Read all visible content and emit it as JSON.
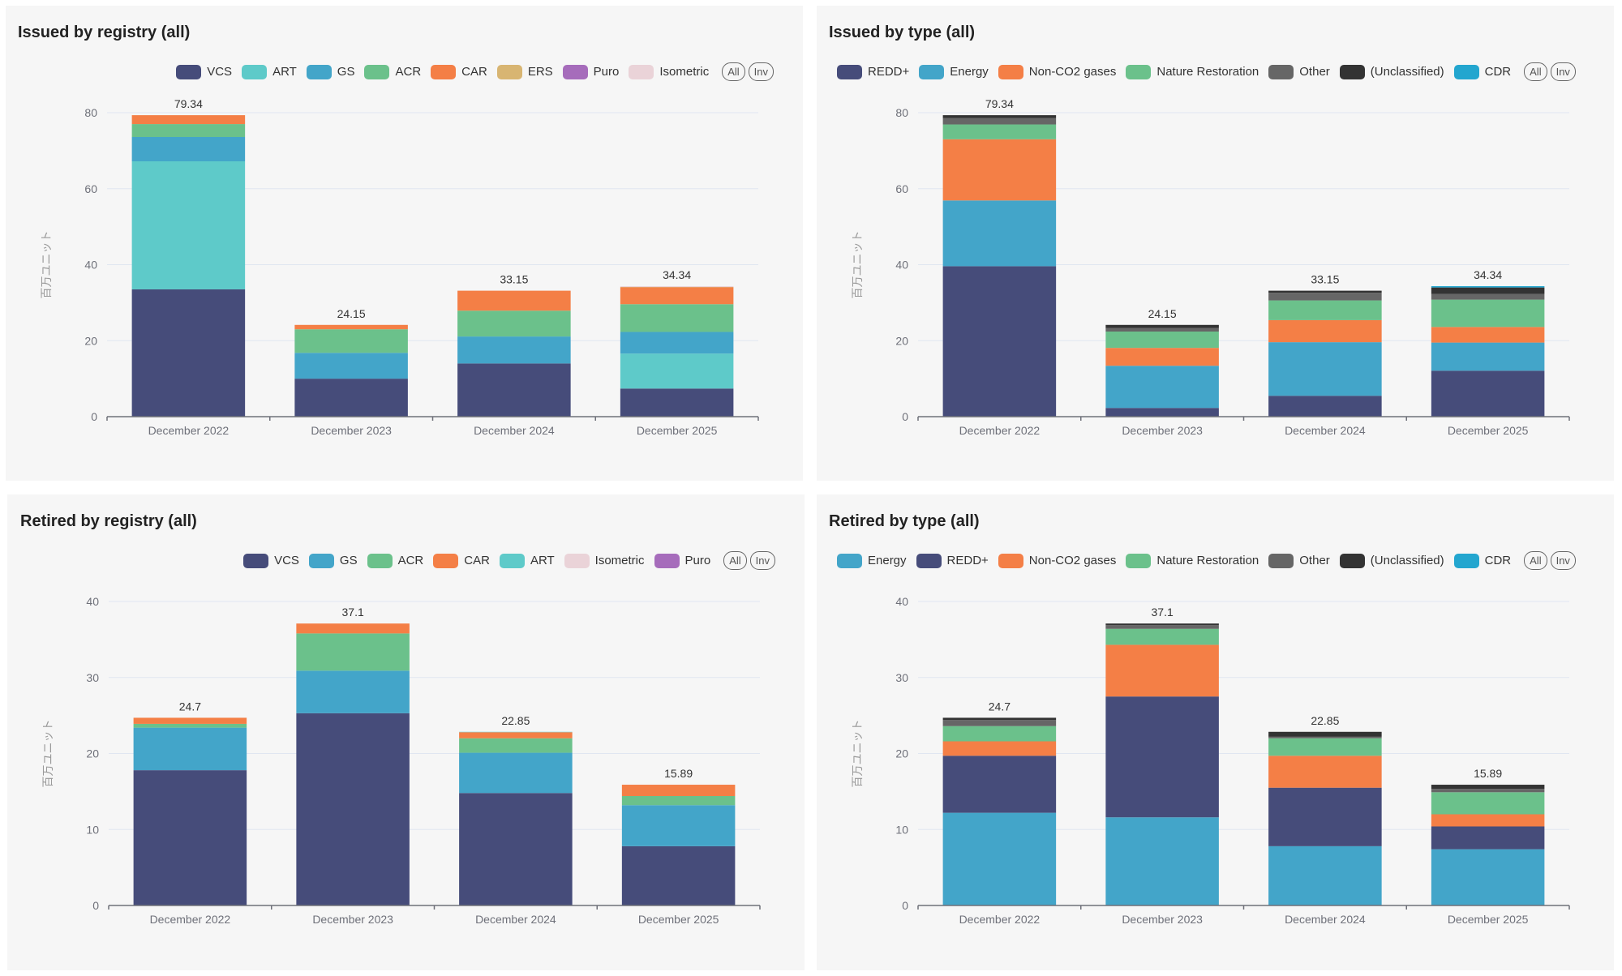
{
  "colors": {
    "VCS": "#464c7a",
    "ART": "#5ecac9",
    "GS": "#43a5c9",
    "ACR": "#6bc18b",
    "CAR": "#f47f46",
    "ERS": "#d8b572",
    "Puro": "#a66cbb",
    "Isometric": "#ead3d8",
    "REDD+": "#464c7a",
    "Energy": "#43a5c9",
    "Non-CO2 gases": "#f47f46",
    "Nature Restoration": "#6bc18b",
    "Other": "#666666",
    "(Unclassified)": "#333333",
    "CDR": "#23a6cf"
  },
  "buttons": {
    "all": "All",
    "inv": "Inv"
  },
  "chart_data": [
    {
      "id": "issued-registry",
      "type": "bar",
      "stacked": true,
      "title": "Issued by registry (all)",
      "ylabel": "百万ユニット",
      "xlabel": "",
      "ylim": [
        0,
        80
      ],
      "yticks": [
        0,
        20,
        40,
        60,
        80
      ],
      "grid": true,
      "legend_position": "top-right",
      "legend": [
        "VCS",
        "ART",
        "GS",
        "ACR",
        "CAR",
        "ERS",
        "Puro",
        "Isometric"
      ],
      "categories": [
        "December 2022",
        "December 2023",
        "December 2024",
        "December 2025"
      ],
      "totals": [
        "79.34",
        "24.15",
        "33.15",
        "34.34"
      ],
      "series": [
        {
          "name": "VCS",
          "values": [
            33.5,
            10.0,
            14.0,
            7.4
          ]
        },
        {
          "name": "ART",
          "values": [
            33.7,
            0,
            0,
            9.2
          ]
        },
        {
          "name": "GS",
          "values": [
            6.4,
            6.8,
            7.1,
            5.7
          ]
        },
        {
          "name": "ACR",
          "values": [
            3.4,
            6.2,
            6.8,
            7.3
          ]
        },
        {
          "name": "CAR",
          "values": [
            2.34,
            1.15,
            5.25,
            4.44
          ]
        },
        {
          "name": "ERS",
          "values": [
            0,
            0,
            0,
            0.1
          ]
        },
        {
          "name": "Puro",
          "values": [
            0,
            0,
            0,
            0
          ]
        },
        {
          "name": "Isometric",
          "values": [
            0,
            0,
            0,
            0.2
          ]
        }
      ]
    },
    {
      "id": "issued-type",
      "type": "bar",
      "stacked": true,
      "title": "Issued by type (all)",
      "ylabel": "百万ユニット",
      "xlabel": "",
      "ylim": [
        0,
        80
      ],
      "yticks": [
        0,
        20,
        40,
        60,
        80
      ],
      "grid": true,
      "legend_position": "top",
      "legend": [
        "REDD+",
        "Energy",
        "Non-CO2 gases",
        "Nature Restoration",
        "Other",
        "(Unclassified)",
        "CDR"
      ],
      "categories": [
        "December 2022",
        "December 2023",
        "December 2024",
        "December 2025"
      ],
      "totals": [
        "79.34",
        "24.15",
        "33.15",
        "34.34"
      ],
      "series": [
        {
          "name": "REDD+",
          "values": [
            39.6,
            2.3,
            5.5,
            12.1
          ]
        },
        {
          "name": "Energy",
          "values": [
            17.3,
            11.1,
            14.1,
            7.4
          ]
        },
        {
          "name": "Non-CO2 gases",
          "values": [
            16.1,
            4.7,
            5.8,
            4.1
          ]
        },
        {
          "name": "Nature Restoration",
          "values": [
            3.9,
            4.3,
            5.2,
            7.2
          ]
        },
        {
          "name": "Other",
          "values": [
            1.7,
            0.9,
            2.0,
            1.5
          ]
        },
        {
          "name": "(Unclassified)",
          "values": [
            0.74,
            0.85,
            0.55,
            1.7
          ]
        },
        {
          "name": "CDR",
          "values": [
            0,
            0,
            0,
            0.34
          ]
        }
      ]
    },
    {
      "id": "retired-registry",
      "type": "bar",
      "stacked": true,
      "title": "Retired by registry (all)",
      "ylabel": "百万ユニット",
      "xlabel": "",
      "ylim": [
        0,
        40
      ],
      "yticks": [
        0,
        10,
        20,
        30,
        40
      ],
      "grid": true,
      "legend_position": "top-right",
      "legend": [
        "VCS",
        "GS",
        "ACR",
        "CAR",
        "ART",
        "Isometric",
        "Puro"
      ],
      "categories": [
        "December 2022",
        "December 2023",
        "December 2024",
        "December 2025"
      ],
      "totals": [
        "24.7",
        "37.1",
        "22.85",
        "15.89"
      ],
      "series": [
        {
          "name": "VCS",
          "values": [
            17.8,
            25.3,
            14.8,
            7.8
          ]
        },
        {
          "name": "GS",
          "values": [
            5.6,
            5.6,
            5.3,
            5.4
          ]
        },
        {
          "name": "ACR",
          "values": [
            0.5,
            4.9,
            1.9,
            1.2
          ]
        },
        {
          "name": "CAR",
          "values": [
            0.8,
            1.3,
            0.8,
            1.49
          ]
        },
        {
          "name": "ART",
          "values": [
            0,
            0,
            0.05,
            0
          ]
        },
        {
          "name": "Isometric",
          "values": [
            0,
            0,
            0,
            0
          ]
        },
        {
          "name": "Puro",
          "values": [
            0,
            0,
            0,
            0
          ]
        }
      ]
    },
    {
      "id": "retired-type",
      "type": "bar",
      "stacked": true,
      "title": "Retired by type (all)",
      "ylabel": "百万ユニット",
      "xlabel": "",
      "ylim": [
        0,
        40
      ],
      "yticks": [
        0,
        10,
        20,
        30,
        40
      ],
      "grid": true,
      "legend_position": "top",
      "legend": [
        "Energy",
        "REDD+",
        "Non-CO2 gases",
        "Nature Restoration",
        "Other",
        "(Unclassified)",
        "CDR"
      ],
      "categories": [
        "December 2022",
        "December 2023",
        "December 2024",
        "December 2025"
      ],
      "totals": [
        "24.7",
        "37.1",
        "22.85",
        "15.89"
      ],
      "series": [
        {
          "name": "Energy",
          "values": [
            12.2,
            11.6,
            7.8,
            7.4
          ]
        },
        {
          "name": "REDD+",
          "values": [
            7.5,
            15.9,
            7.7,
            3.0
          ]
        },
        {
          "name": "Non-CO2 gases",
          "values": [
            1.9,
            6.8,
            4.2,
            1.6
          ]
        },
        {
          "name": "Nature Restoration",
          "values": [
            2.0,
            2.1,
            2.3,
            2.9
          ]
        },
        {
          "name": "Other",
          "values": [
            0.8,
            0.5,
            0.2,
            0.45
          ]
        },
        {
          "name": "(Unclassified)",
          "values": [
            0.3,
            0.2,
            0.65,
            0.54
          ]
        },
        {
          "name": "CDR",
          "values": [
            0,
            0,
            0,
            0
          ]
        }
      ]
    }
  ]
}
